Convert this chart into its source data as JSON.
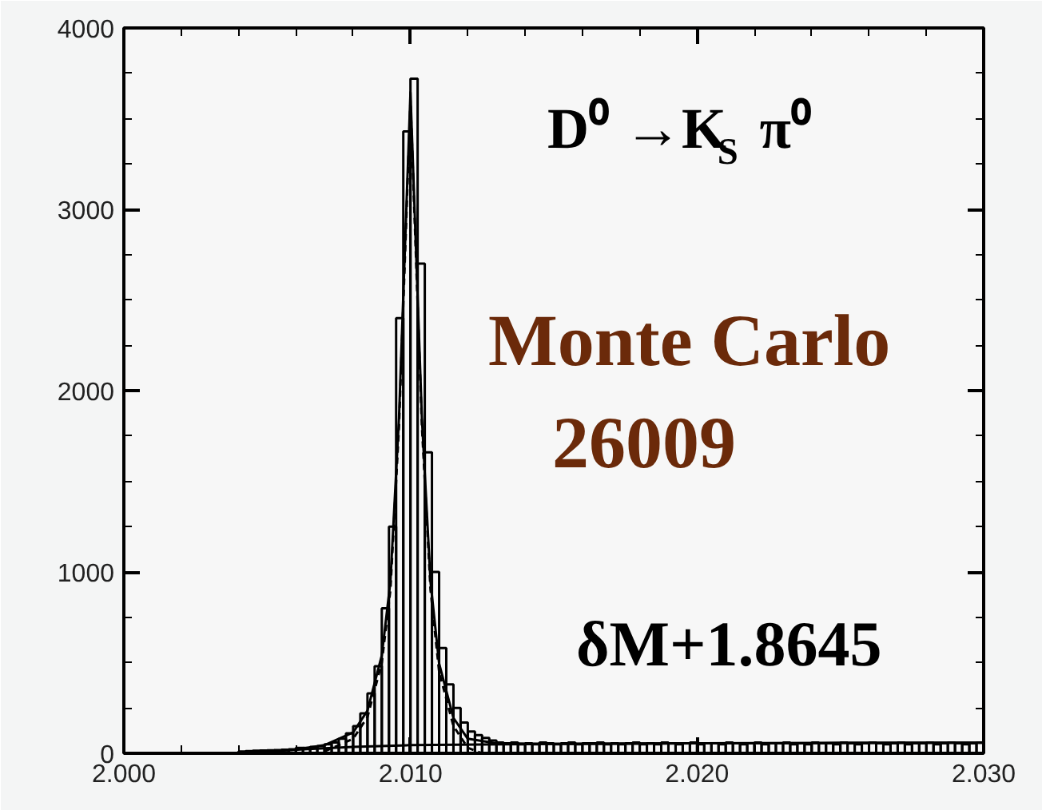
{
  "chart_data": {
    "type": "histogram",
    "bins": [
      2.0,
      2.00025,
      2.0005,
      2.00075,
      2.001,
      2.00125,
      2.0015,
      2.00175,
      2.002,
      2.00225,
      2.0025,
      2.00275,
      2.003,
      2.00325,
      2.0035,
      2.00375,
      2.004,
      2.00425,
      2.0045,
      2.00475,
      2.005,
      2.00525,
      2.0055,
      2.00575,
      2.006,
      2.00625,
      2.0065,
      2.00675,
      2.007,
      2.00725,
      2.0075,
      2.00775,
      2.008,
      2.00825,
      2.0085,
      2.00875,
      2.009,
      2.00925,
      2.0095,
      2.00975,
      2.01,
      2.01025,
      2.0105,
      2.01075,
      2.011,
      2.01125,
      2.0115,
      2.01175,
      2.012,
      2.01225,
      2.0125,
      2.01275,
      2.013,
      2.01325,
      2.0135,
      2.01375,
      2.014,
      2.01425,
      2.0145,
      2.01475,
      2.015,
      2.01525,
      2.0155,
      2.01575,
      2.016,
      2.01625,
      2.0165,
      2.01675,
      2.017,
      2.01725,
      2.0175,
      2.01775,
      2.018,
      2.01825,
      2.0185,
      2.01875,
      2.019,
      2.01925,
      2.0195,
      2.01975,
      2.02,
      2.02025,
      2.0205,
      2.02075,
      2.021,
      2.02125,
      2.0215,
      2.02175,
      2.022,
      2.02225,
      2.0225,
      2.02275,
      2.023,
      2.02325,
      2.0235,
      2.02375,
      2.024,
      2.02425,
      2.0245,
      2.02475,
      2.025,
      2.02525,
      2.0255,
      2.02575,
      2.026,
      2.02625,
      2.0265,
      2.02675,
      2.027,
      2.02725,
      2.0275,
      2.02775,
      2.028,
      2.02825,
      2.0285,
      2.02875,
      2.029,
      2.02925,
      2.0295,
      2.02975,
      2.03
    ],
    "values": [
      0,
      0,
      0,
      0,
      0,
      0,
      0,
      0,
      0,
      0,
      0,
      0,
      0,
      0,
      0,
      0,
      10,
      12,
      14,
      15,
      17,
      18,
      20,
      22,
      30,
      30,
      35,
      40,
      50,
      60,
      80,
      110,
      150,
      220,
      330,
      480,
      800,
      1250,
      2400,
      3430,
      3720,
      2700,
      1660,
      1000,
      580,
      380,
      250,
      170,
      120,
      100,
      85,
      70,
      60,
      55,
      60,
      50,
      55,
      50,
      60,
      55,
      50,
      55,
      60,
      50,
      55,
      55,
      60,
      50,
      55,
      50,
      55,
      60,
      50,
      55,
      50,
      60,
      55,
      50,
      55,
      60,
      50,
      55,
      55,
      50,
      60,
      55,
      50,
      55,
      60,
      50,
      55,
      55,
      60,
      50,
      55,
      50,
      60,
      55,
      55,
      50,
      60,
      55,
      50,
      55,
      60,
      55,
      50,
      55,
      60,
      50,
      55,
      55,
      60,
      50,
      55,
      60,
      55,
      50,
      55,
      60
    ],
    "color": "#000000",
    "series": [
      {
        "type": "line",
        "line_style": "solid",
        "color": "#000000",
        "x": [
          2.004,
          2.006,
          2.007,
          2.008,
          2.0085,
          2.009,
          2.0093,
          2.0096,
          2.0098,
          2.01,
          2.0102,
          2.0104,
          2.0107,
          2.011,
          2.0115,
          2.012,
          2.013,
          2.015,
          2.02,
          2.025,
          2.03
        ],
        "values": [
          0,
          20,
          45,
          115,
          235,
          540,
          945,
          1850,
          2750,
          3645,
          2745,
          1845,
          945,
          495,
          195,
          80,
          55,
          52,
          55,
          57,
          58
        ]
      },
      {
        "type": "line",
        "line_style": "dashed",
        "color": "#000000",
        "x": [
          2.007,
          2.008,
          2.0085,
          2.009,
          2.0093,
          2.0096,
          2.0098,
          2.01,
          2.0102,
          2.0104,
          2.0107,
          2.011,
          2.0115,
          2.012,
          2.0125
        ],
        "values": [
          10,
          80,
          200,
          500,
          900,
          1800,
          2700,
          3600,
          2700,
          1800,
          900,
          450,
          150,
          30,
          0
        ]
      },
      {
        "type": "line",
        "line_style": "solid",
        "color": "#000000",
        "x": [
          2.004,
          2.006,
          2.008,
          2.01,
          2.015,
          2.02,
          2.025,
          2.03
        ],
        "values": [
          0,
          20,
          35,
          45,
          52,
          55,
          57,
          58
        ]
      }
    ],
    "xlim": [
      2.0,
      2.03
    ],
    "ylim": [
      0,
      4000
    ],
    "xticks": [
      {
        "value": 2.0,
        "label": "2.000"
      },
      {
        "value": 2.01,
        "label": "2.010"
      },
      {
        "value": 2.02,
        "label": "2.020"
      },
      {
        "value": 2.03,
        "label": "2.030"
      }
    ],
    "yticks": [
      0,
      1000,
      2000,
      3000,
      4000
    ],
    "grid": false,
    "annotations": [
      "D⁰ →K$_{S}$ π⁰",
      "Monte Carlo",
      "26009",
      "δM+1.8645"
    ]
  }
}
